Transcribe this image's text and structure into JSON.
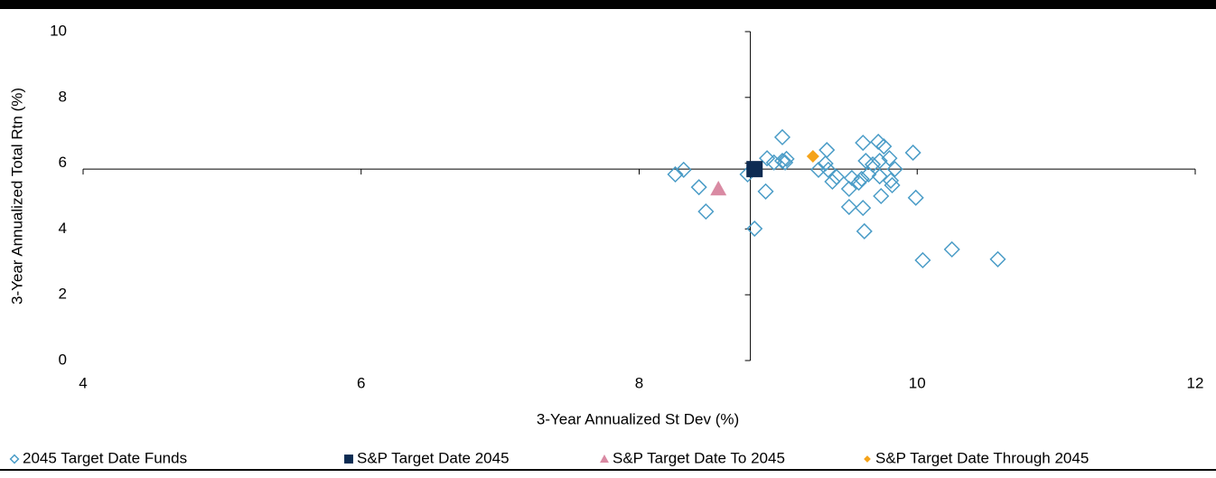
{
  "chart_data": {
    "type": "scatter",
    "xlabel": "3-Year Annualized St Dev (%)",
    "ylabel": "3-Year Annualized Total Rtn (%)",
    "xlim": [
      4,
      12
    ],
    "xticks": [
      4,
      6,
      8,
      10,
      12
    ],
    "ylim": [
      0,
      10
    ],
    "yticks": [
      0,
      2,
      4,
      6,
      8,
      10
    ],
    "grid": false,
    "axis_cross": [
      8.8,
      5.82
    ],
    "legend": "bottom",
    "series": [
      {
        "name": "2045 Target Date Funds",
        "color": "#4a9cc7",
        "marker": "hollow-diamond",
        "x": [
          8.26,
          8.32,
          8.43,
          8.48,
          8.78,
          8.83,
          8.91,
          8.92,
          8.97,
          9.03,
          9.03,
          9.05,
          9.06,
          9.29,
          9.35,
          9.34,
          9.36,
          9.39,
          9.42,
          9.51,
          9.53,
          9.51,
          9.58,
          9.6,
          9.61,
          9.61,
          9.62,
          9.63,
          9.65,
          9.68,
          9.72,
          9.73,
          9.73,
          9.74,
          9.76,
          9.8,
          9.81,
          9.82,
          9.84,
          9.97,
          9.99,
          10.04,
          10.25,
          10.58
        ],
        "y": [
          5.66,
          5.8,
          5.27,
          4.53,
          5.66,
          4.01,
          5.14,
          6.15,
          6.02,
          6.79,
          6.07,
          6.02,
          6.13,
          5.8,
          6.4,
          5.99,
          5.8,
          5.44,
          5.58,
          5.22,
          5.55,
          4.67,
          5.41,
          5.52,
          6.62,
          4.64,
          3.93,
          6.07,
          5.66,
          5.96,
          6.65,
          6.07,
          5.6,
          5.0,
          6.51,
          6.15,
          5.47,
          5.33,
          5.82,
          6.32,
          4.95,
          3.05,
          3.38,
          3.08
        ]
      },
      {
        "name": "S&P Target Date 2045",
        "color": "#0d2b52",
        "marker": "square",
        "x": [
          8.83
        ],
        "y": [
          5.82
        ]
      },
      {
        "name": "S&P Target Date To 2045",
        "color": "#d98aa3",
        "marker": "triangle",
        "x": [
          8.57
        ],
        "y": [
          5.22
        ]
      },
      {
        "name": "S&P Target Date Through 2045",
        "color": "#f5a31a",
        "marker": "diamond",
        "x": [
          9.25
        ],
        "y": [
          6.21
        ]
      }
    ]
  }
}
